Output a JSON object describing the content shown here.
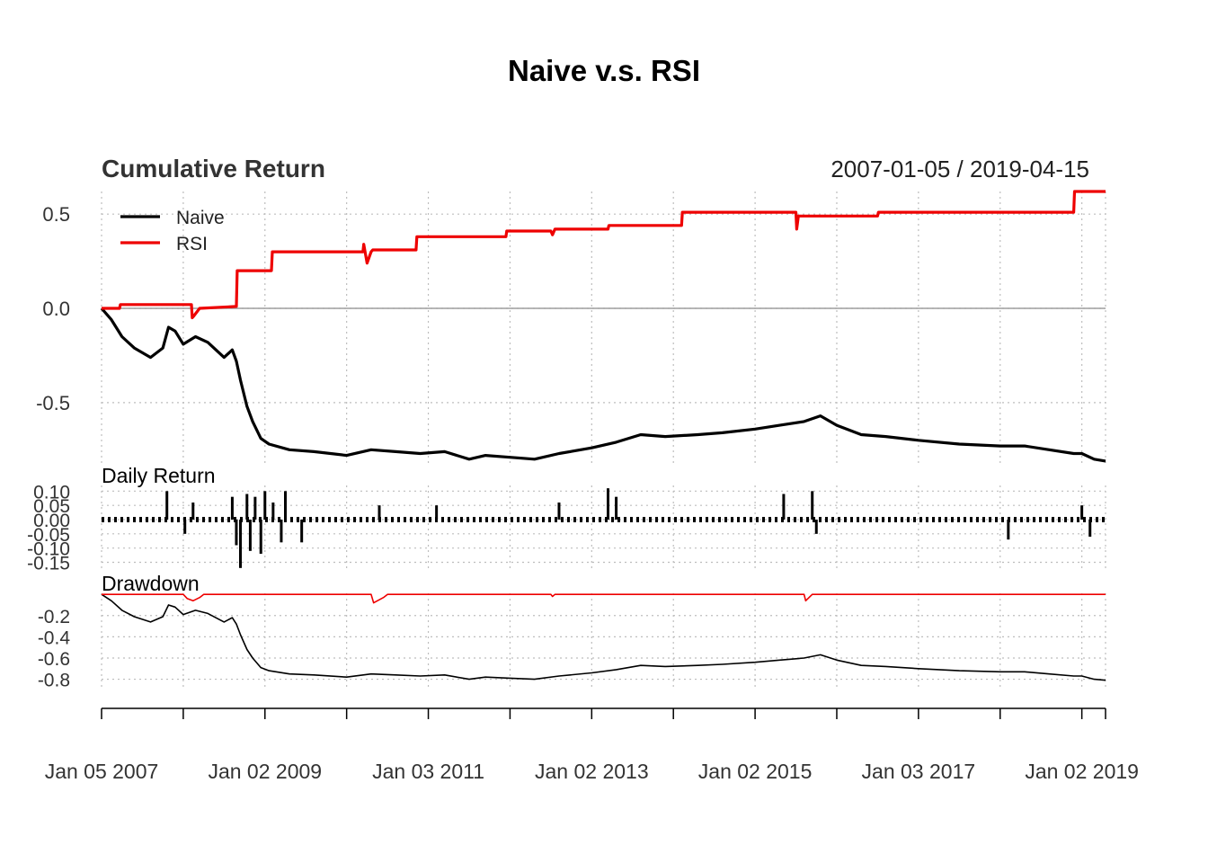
{
  "chart_data": {
    "type": "line",
    "title": "Naive v.s. RSI",
    "date_range": "2007-01-05 / 2019-04-15",
    "colors": {
      "naive": "#000000",
      "rsi": "#ee0000",
      "grid": "#bdbdbd",
      "zero": "#9e9e9e"
    },
    "x_ticks": [
      {
        "year": 2007.0,
        "label": "Jan 05 2007"
      },
      {
        "year": 2009.0,
        "label": "Jan 02 2009"
      },
      {
        "year": 2011.0,
        "label": "Jan 03 2011"
      },
      {
        "year": 2013.0,
        "label": "Jan 02 2013"
      },
      {
        "year": 2015.0,
        "label": "Jan 02 2015"
      },
      {
        "year": 2017.0,
        "label": "Jan 03 2017"
      },
      {
        "year": 2019.0,
        "label": "Jan 02 2019"
      }
    ],
    "x_minor_ticks": [
      2007.0,
      2008.0,
      2009.0,
      2010.0,
      2011.0,
      2012.0,
      2013.0,
      2014.0,
      2015.0,
      2016.0,
      2017.0,
      2018.0,
      2019.0,
      2019.29
    ],
    "xlim": [
      2007.0,
      2019.29
    ],
    "panels": [
      {
        "id": "cumulative",
        "title": "Cumulative Return",
        "ylim": [
          -0.82,
          0.62
        ],
        "yticks": [
          0.5,
          0.0,
          -0.5
        ],
        "ytick_labels": [
          "0.5",
          "0.0",
          "-0.5"
        ],
        "zero_line": true,
        "legend": {
          "position": "top-left",
          "entries": [
            "Naive",
            "RSI"
          ]
        },
        "series": [
          {
            "name": "Naive",
            "x": [
              2007.0,
              2007.12,
              2007.25,
              2007.4,
              2007.6,
              2007.75,
              2007.82,
              2007.9,
              2008.0,
              2008.15,
              2008.3,
              2008.5,
              2008.6,
              2008.65,
              2008.7,
              2008.78,
              2008.85,
              2008.95,
              2009.05,
              2009.3,
              2009.6,
              2010.0,
              2010.3,
              2010.6,
              2010.9,
              2011.2,
              2011.5,
              2011.7,
              2012.0,
              2012.3,
              2012.6,
              2013.0,
              2013.3,
              2013.6,
              2013.9,
              2014.3,
              2014.6,
              2015.0,
              2015.3,
              2015.6,
              2015.8,
              2016.0,
              2016.3,
              2016.6,
              2017.0,
              2017.5,
              2018.0,
              2018.3,
              2018.6,
              2018.9,
              2019.0,
              2019.15,
              2019.29
            ],
            "values": [
              0.0,
              -0.06,
              -0.15,
              -0.21,
              -0.26,
              -0.21,
              -0.1,
              -0.12,
              -0.19,
              -0.15,
              -0.18,
              -0.26,
              -0.22,
              -0.28,
              -0.38,
              -0.52,
              -0.6,
              -0.69,
              -0.72,
              -0.75,
              -0.76,
              -0.78,
              -0.75,
              -0.76,
              -0.77,
              -0.76,
              -0.8,
              -0.78,
              -0.79,
              -0.8,
              -0.77,
              -0.74,
              -0.71,
              -0.67,
              -0.68,
              -0.67,
              -0.66,
              -0.64,
              -0.62,
              -0.6,
              -0.57,
              -0.62,
              -0.67,
              -0.68,
              -0.7,
              -0.72,
              -0.73,
              -0.73,
              -0.75,
              -0.77,
              -0.77,
              -0.8,
              -0.81
            ]
          },
          {
            "name": "RSI",
            "x": [
              2007.0,
              2007.22,
              2007.23,
              2008.1,
              2008.11,
              2008.13,
              2008.2,
              2008.65,
              2008.66,
              2009.08,
              2009.09,
              2010.2,
              2010.21,
              2010.25,
              2010.3,
              2010.32,
              2010.4,
              2010.85,
              2010.86,
              2011.95,
              2011.96,
              2012.5,
              2012.52,
              2012.55,
              2013.2,
              2013.21,
              2014.1,
              2014.11,
              2015.5,
              2015.51,
              2015.53,
              2015.6,
              2015.62,
              2016.5,
              2016.51,
              2018.9,
              2018.91,
              2019.29
            ],
            "values": [
              0.0,
              0.0,
              0.02,
              0.02,
              -0.05,
              -0.04,
              0.0,
              0.01,
              0.2,
              0.2,
              0.3,
              0.3,
              0.34,
              0.24,
              0.3,
              0.31,
              0.31,
              0.31,
              0.38,
              0.38,
              0.41,
              0.41,
              0.39,
              0.42,
              0.42,
              0.44,
              0.44,
              0.51,
              0.51,
              0.42,
              0.49,
              0.49,
              0.49,
              0.49,
              0.51,
              0.51,
              0.62,
              0.62
            ]
          }
        ]
      },
      {
        "id": "daily",
        "title": "Daily Return",
        "ylim": [
          -0.18,
          0.12
        ],
        "yticks": [
          0.1,
          0.05,
          0.0,
          -0.05,
          -0.1,
          -0.15
        ],
        "ytick_labels": [
          "0.10",
          "0.05",
          "0.00",
          "-0.05",
          "-0.10",
          "-0.15"
        ],
        "series": [
          {
            "name": "Naive",
            "x": [
              2007.8,
              2008.02,
              2008.12,
              2008.6,
              2008.65,
              2008.7,
              2008.78,
              2008.82,
              2008.88,
              2008.95,
              2009.0,
              2009.1,
              2009.2,
              2009.25,
              2009.45,
              2010.4,
              2011.1,
              2012.6,
              2013.2,
              2013.3,
              2015.35,
              2015.7,
              2015.75,
              2018.1,
              2019.0,
              2019.1
            ],
            "values": [
              0.1,
              -0.05,
              0.06,
              0.08,
              -0.09,
              -0.17,
              0.09,
              -0.11,
              0.08,
              -0.12,
              0.1,
              0.06,
              -0.08,
              0.1,
              -0.08,
              0.05,
              0.05,
              0.06,
              0.11,
              0.08,
              0.09,
              0.1,
              -0.05,
              -0.07,
              0.05,
              -0.06
            ]
          }
        ]
      },
      {
        "id": "drawdown",
        "title": "Drawdown",
        "ylim": [
          -0.88,
          0.01
        ],
        "yticks": [
          -0.2,
          -0.4,
          -0.6,
          -0.8
        ],
        "ytick_labels": [
          "-0.2",
          "-0.4",
          "-0.6",
          "-0.8"
        ],
        "series": [
          {
            "name": "Naive",
            "x": [
              2007.0,
              2007.12,
              2007.25,
              2007.4,
              2007.6,
              2007.75,
              2007.82,
              2007.9,
              2008.0,
              2008.15,
              2008.3,
              2008.5,
              2008.6,
              2008.65,
              2008.7,
              2008.78,
              2008.85,
              2008.95,
              2009.05,
              2009.3,
              2009.6,
              2010.0,
              2010.3,
              2010.6,
              2010.9,
              2011.2,
              2011.5,
              2011.7,
              2012.0,
              2012.3,
              2012.6,
              2013.0,
              2013.3,
              2013.6,
              2013.9,
              2014.3,
              2014.6,
              2015.0,
              2015.3,
              2015.6,
              2015.8,
              2016.0,
              2016.3,
              2016.6,
              2017.0,
              2017.5,
              2018.0,
              2018.3,
              2018.6,
              2018.9,
              2019.0,
              2019.15,
              2019.29
            ],
            "values": [
              0.0,
              -0.06,
              -0.15,
              -0.21,
              -0.26,
              -0.21,
              -0.1,
              -0.12,
              -0.19,
              -0.15,
              -0.18,
              -0.26,
              -0.22,
              -0.28,
              -0.38,
              -0.52,
              -0.6,
              -0.69,
              -0.72,
              -0.75,
              -0.76,
              -0.78,
              -0.75,
              -0.76,
              -0.77,
              -0.76,
              -0.8,
              -0.78,
              -0.79,
              -0.8,
              -0.77,
              -0.74,
              -0.71,
              -0.67,
              -0.68,
              -0.67,
              -0.66,
              -0.64,
              -0.62,
              -0.6,
              -0.57,
              -0.62,
              -0.67,
              -0.68,
              -0.7,
              -0.72,
              -0.73,
              -0.73,
              -0.75,
              -0.77,
              -0.77,
              -0.8,
              -0.81
            ]
          },
          {
            "name": "RSI",
            "x": [
              2007.0,
              2008.0,
              2008.05,
              2008.12,
              2008.2,
              2008.25,
              2010.3,
              2010.33,
              2010.45,
              2010.5,
              2012.5,
              2012.52,
              2012.55,
              2015.6,
              2015.62,
              2015.7,
              2019.29
            ],
            "values": [
              0.0,
              0.0,
              -0.04,
              -0.06,
              -0.03,
              0.0,
              0.0,
              -0.08,
              -0.03,
              0.0,
              0.0,
              -0.02,
              0.0,
              0.0,
              -0.06,
              0.0,
              0.0
            ]
          }
        ]
      }
    ]
  }
}
